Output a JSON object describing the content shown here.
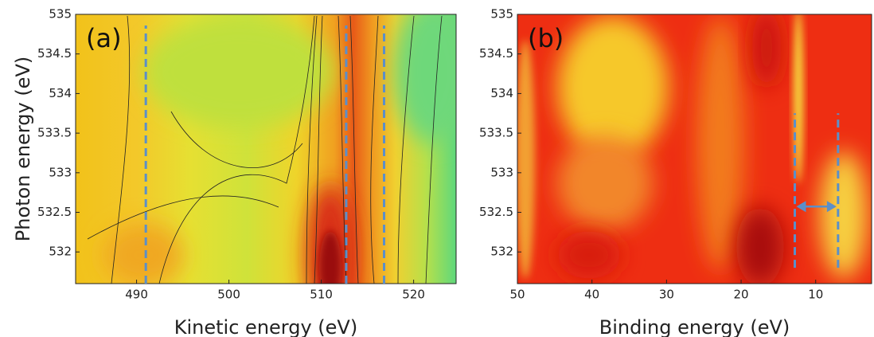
{
  "chart_data": [
    {
      "type": "contour",
      "panel_label": "(a)",
      "x_label": "Kinetic energy (eV)",
      "y_label": "Photon energy (eV)",
      "xlim": [
        483.4,
        524.6
      ],
      "xticks": [
        490,
        500,
        510,
        520
      ],
      "ylim": [
        531.6,
        535
      ],
      "yticks": [
        532,
        532.5,
        533,
        533.5,
        534,
        534.5,
        535
      ],
      "vlines": [
        491,
        512.7,
        516.8
      ],
      "vline_color": "#5b8fc9"
    },
    {
      "type": "heatmap",
      "panel_label": "(b)",
      "x_label": "Binding energy (eV)",
      "xlim": [
        50,
        2.5
      ],
      "xticks": [
        50,
        40,
        30,
        20,
        10
      ],
      "ylim": [
        531.6,
        535
      ],
      "yticks": [
        532,
        532.5,
        533,
        533.5,
        534,
        534.5,
        535
      ],
      "vlines": [
        12.8,
        7.0
      ],
      "vline_ylim": [
        531.8,
        533.75
      ],
      "vline_color": "#5b8fc9"
    }
  ]
}
